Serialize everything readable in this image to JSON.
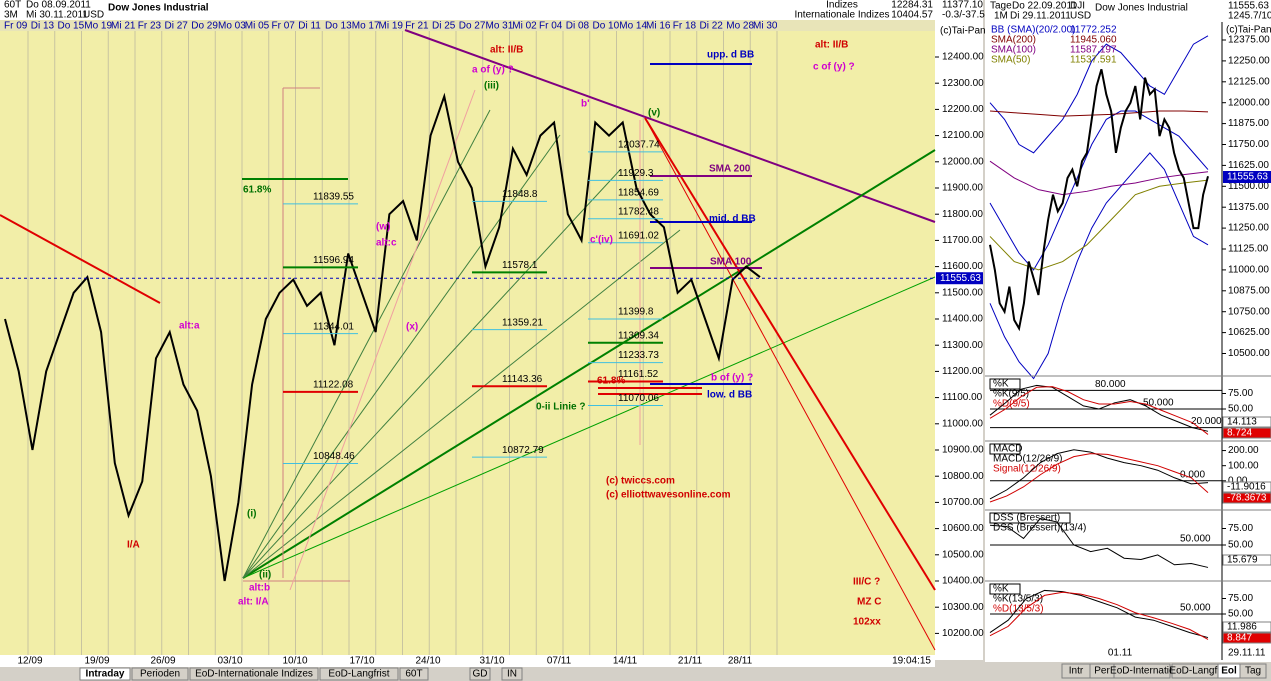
{
  "header": {
    "period": "60T",
    "from": "Do 08.09.2011",
    "range": "3M",
    "to": "Mi 30.11.2011",
    "currency": "USD",
    "name": "Dow Jones Industrial",
    "group": "Indizes",
    "subgroup": "Internationale Indizes",
    "high": "12284.31",
    "low": "10404.57",
    "last": "11377.10",
    "change": "-0.3/-37.54"
  },
  "date_row": [
    "Fr 09",
    "Di 13",
    "Do 15",
    "Mo 19",
    "Mi 21",
    "Fr 23",
    "Di 27",
    "Do 29",
    "Mo 03",
    "Mi 05",
    "Fr 07",
    "Di 11",
    "Do 13",
    "Mo 17",
    "Mi 19",
    "Fr 21",
    "Di 25",
    "Do 27",
    "Mo 31",
    "Mi 02",
    "Fr 04",
    "Di 08",
    "Do 10",
    "Mo 14",
    "Mi 16",
    "Fr 18",
    "Di 22",
    "Mo 28",
    "Mi 30"
  ],
  "main_chart": {
    "axis_title": "(c)Tai-Pan",
    "yticks": [
      "12400.00",
      "12300.00",
      "12200.00",
      "12100.00",
      "12000.00",
      "11900.00",
      "11800.00",
      "11700.00",
      "11600.00",
      "11500.00",
      "11400.00",
      "11300.00",
      "11200.00",
      "11100.00",
      "11000.00",
      "10900.00",
      "10800.00",
      "10700.00",
      "10600.00",
      "10500.00",
      "10400.00",
      "10300.00",
      "10200.00"
    ],
    "xticks": [
      "12/09",
      "19/09",
      "26/09",
      "03/10",
      "10/10",
      "17/10",
      "24/10",
      "31/10",
      "07/11",
      "14/11",
      "21/11",
      "28/11"
    ],
    "time": "19:04:15",
    "last_price": 11555.63,
    "price": [
      11400,
      11200,
      10900,
      11200,
      11350,
      11500,
      11560,
      11350,
      10850,
      10650,
      10780,
      11250,
      11350,
      11150,
      11050,
      10800,
      10400,
      10700,
      11150,
      11400,
      11500,
      11550,
      11450,
      11500,
      11300,
      11650,
      11500,
      11350,
      11800,
      11850,
      11700,
      12100,
      12250,
      12000,
      11900,
      11600,
      11750,
      12050,
      11950,
      12100,
      12150,
      11800,
      11700,
      12150,
      12100,
      12150,
      11900,
      11800,
      11750,
      11500,
      11550,
      11400,
      11250,
      11550,
      11600,
      11560
    ],
    "fib_labels": [
      11839.55,
      11596.94,
      11344.01,
      11122.08,
      10848.46,
      11848.8,
      11578.1,
      11359.21,
      11143.36,
      10872.79,
      12037.74,
      11929.3,
      11854.69,
      11782.48,
      11691.02,
      11399.8,
      11309.34,
      11233.73,
      11161.52,
      11070.06
    ],
    "annotations": [
      {
        "text": "alt: II/B",
        "color": "#d00000"
      },
      {
        "text": "a of (y) ?",
        "color": "#d000d0"
      },
      {
        "text": "(iii)",
        "color": "#007000"
      },
      {
        "text": "b'",
        "color": "#d000d0"
      },
      {
        "text": "(v)",
        "color": "#007000"
      },
      {
        "text": "upp. d BB",
        "color": "#0000c0"
      },
      {
        "text": "alt: II/B",
        "color": "#d00000"
      },
      {
        "text": "c of (y) ?",
        "color": "#d000d0"
      },
      {
        "text": "SMA 200",
        "color": "#800080"
      },
      {
        "text": "mid. d BB",
        "color": "#0000c0"
      },
      {
        "text": "SMA 100",
        "color": "#800080"
      },
      {
        "text": "61.8%",
        "color": "#007000"
      },
      {
        "text": "(w)",
        "color": "#d000d0"
      },
      {
        "text": "alt:c",
        "color": "#d000d0"
      },
      {
        "text": "alt:a",
        "color": "#d000d0"
      },
      {
        "text": "(x)",
        "color": "#d000d0"
      },
      {
        "text": "c'(iv)",
        "color": "#d000d0"
      },
      {
        "text": "b of (y) ?",
        "color": "#d000d0"
      },
      {
        "text": "low. d BB",
        "color": "#0000c0"
      },
      {
        "text": "61.8%",
        "color": "#d00000"
      },
      {
        "text": "0-ii Linie ?",
        "color": "#007000"
      },
      {
        "text": "(c) twiccs.com",
        "color": "#d00000"
      },
      {
        "text": "(c) elliottwavesonline.com",
        "color": "#d00000"
      },
      {
        "text": "I/A",
        "color": "#d00000"
      },
      {
        "text": "(i)",
        "color": "#007000"
      },
      {
        "text": "(ii)",
        "color": "#007000"
      },
      {
        "text": "alt:b",
        "color": "#d000d0"
      },
      {
        "text": "alt: I/A",
        "color": "#d000d0"
      },
      {
        "text": "III/C ?",
        "color": "#d00000"
      },
      {
        "text": "MZ C",
        "color": "#d00000"
      },
      {
        "text": "102xx",
        "color": "#d00000"
      }
    ]
  },
  "tabs": [
    "Intraday",
    "Perioden",
    "EoD-Internationale Indizes",
    "EoD-Langfrist",
    "60T",
    "GD",
    "IN"
  ],
  "right_header": {
    "period": "Tage",
    "from": "Do 22.09.2011",
    "range": "1M",
    "to": "Di 29.11.2011",
    "symbol": "DJI",
    "currency": "USD",
    "name": "Dow Jones Industrial",
    "last": "11555.63",
    "change": "1245.7/10.8%"
  },
  "right_chart": {
    "axis_title": "(c)Tai-Pan",
    "yticks": [
      "12375.00",
      "12250.00",
      "12125.00",
      "12000.00",
      "11875.00",
      "11750.00",
      "11625.00",
      "11500.00",
      "11375.00",
      "11250.00",
      "11125.00",
      "11000.00",
      "10875.00",
      "10750.00",
      "10625.00",
      "10500.00"
    ],
    "last_price": 11555.63,
    "legend": [
      {
        "label": "BB (SMA)(20/2.00)",
        "value": "11772.252",
        "color": "#0000c0"
      },
      {
        "label": "SMA(200)",
        "value": "11945.060",
        "color": "#800000"
      },
      {
        "label": "SMA(100)",
        "value": "11587.197",
        "color": "#800080"
      },
      {
        "label": "SMA(50)",
        "value": "11537.591",
        "color": "#808000"
      }
    ],
    "price": [
      11150,
      11000,
      10800,
      10750,
      10900,
      10700,
      10650,
      10800,
      11050,
      10950,
      10850,
      11100,
      11300,
      11450,
      11350,
      11400,
      11550,
      11600,
      11500,
      11650,
      11700,
      11900,
      12100,
      12200,
      12050,
      11950,
      11700,
      11850,
      11950,
      12000,
      12100,
      11900,
      12150,
      12050,
      12080,
      11800,
      11900,
      11850,
      11700,
      11600,
      11550,
      11400,
      11250,
      11250,
      11450,
      11560
    ],
    "bb_upper": [
      12000,
      11900,
      11750,
      11700,
      11800,
      11900,
      12050,
      12250,
      12350,
      12300,
      12200,
      12100,
      12050,
      12200,
      12350,
      12400
    ],
    "bb_mid": [
      11400,
      11250,
      11100,
      11000,
      11150,
      11350,
      11550,
      11750,
      11900,
      11950,
      11950,
      11900,
      11850,
      11800,
      11700,
      11600
    ],
    "bb_lower": [
      10800,
      10600,
      10450,
      10350,
      10500,
      10800,
      11050,
      11250,
      11400,
      11500,
      11600,
      11700,
      11600,
      11400,
      11200,
      11150
    ],
    "sma200": [
      11950,
      11940,
      11930,
      11920,
      11925,
      11930,
      11940,
      11950,
      11950,
      11945
    ],
    "sma100": [
      11650,
      11550,
      11480,
      11450,
      11470,
      11500,
      11520,
      11550,
      11570,
      11587
    ],
    "sma50": [
      11200,
      11050,
      11000,
      11050,
      11150,
      11300,
      11450,
      11500,
      11520,
      11537
    ]
  },
  "panels": [
    {
      "title": "%K",
      "ylim": [
        0,
        100
      ],
      "yticks": [
        "75.00",
        "50.00",
        "25.00"
      ],
      "levels": [
        "80.000",
        "50.000",
        "20.000"
      ],
      "lines": [
        {
          "label": "%K(9/5)",
          "color": "#000000"
        },
        {
          "label": "%D(9/5)",
          "color": "#d00000"
        }
      ],
      "last": [
        "14.113",
        "8.724"
      ],
      "series": [
        [
          40,
          60,
          82,
          88,
          85,
          70,
          55,
          50,
          60,
          65,
          55,
          40,
          30,
          20,
          14
        ],
        [
          35,
          50,
          70,
          85,
          86,
          78,
          65,
          58,
          58,
          62,
          58,
          48,
          38,
          28,
          9
        ]
      ]
    },
    {
      "title": "MACD",
      "ylim": [
        -160,
        250
      ],
      "yticks": [
        "200.00",
        "100.00",
        "0.00",
        "-100.00"
      ],
      "levels": [
        "0.000"
      ],
      "lines": [
        {
          "label": "MACD(12/26/9)",
          "color": "#000000"
        },
        {
          "label": "Signal(12/26/9)",
          "color": "#d00000"
        }
      ],
      "last": [
        "-11.9016",
        "-78.3673"
      ],
      "series": [
        [
          -120,
          -60,
          20,
          120,
          180,
          205,
          190,
          150,
          120,
          100,
          70,
          20,
          -20,
          -12
        ],
        [
          -140,
          -100,
          -40,
          40,
          110,
          160,
          180,
          175,
          150,
          125,
          100,
          60,
          20,
          -78
        ]
      ]
    },
    {
      "title": "DSS (Bressert)",
      "ylim": [
        0,
        100
      ],
      "yticks": [
        "75.00",
        "50.00",
        "25.00"
      ],
      "levels": [
        "50.000"
      ],
      "lines": [
        {
          "label": "DSS (Bressert)(13/4)",
          "color": "#000000"
        }
      ],
      "last": [
        "15.679"
      ],
      "series": [
        [
          80,
          78,
          60,
          90,
          85,
          50,
          40,
          45,
          30,
          28,
          35,
          20,
          22,
          16
        ]
      ]
    },
    {
      "title": "%K",
      "ylim": [
        0,
        100
      ],
      "yticks": [
        "75.00",
        "50.00",
        "25.00"
      ],
      "levels": [
        "50.000"
      ],
      "lines": [
        {
          "label": "%K(13/5/3)",
          "color": "#000000"
        },
        {
          "label": "%D(13/5/3)",
          "color": "#d00000"
        }
      ],
      "last": [
        "11.986",
        "8.847"
      ],
      "series": [
        [
          20,
          40,
          75,
          88,
          86,
          80,
          70,
          60,
          45,
          40,
          30,
          20,
          12
        ],
        [
          15,
          30,
          60,
          80,
          85,
          82,
          75,
          65,
          52,
          44,
          35,
          25,
          9
        ]
      ]
    }
  ],
  "right_xticks": [
    "01.11",
    "29.11.11"
  ],
  "right_tabs": [
    "Intr",
    "Per",
    "EoD-Internatic",
    "EoD-Langfr",
    "Eol",
    "Tag"
  ]
}
